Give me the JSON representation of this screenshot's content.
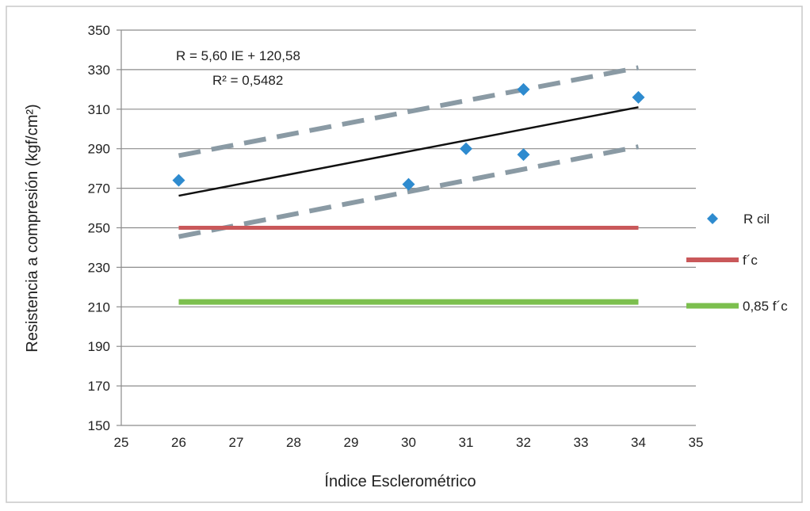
{
  "chart_data": {
    "type": "scatter",
    "xlabel": "Índice Esclerométrico",
    "ylabel": "Resistencia a compresión (kgf/cm²)",
    "xlim": [
      25,
      35
    ],
    "ylim": [
      150,
      350
    ],
    "x_ticks": [
      25,
      26,
      27,
      28,
      29,
      30,
      31,
      32,
      33,
      34,
      35
    ],
    "y_ticks": [
      150,
      170,
      190,
      210,
      230,
      250,
      270,
      290,
      310,
      330,
      350
    ],
    "grid": "horizontal",
    "legend_position": "right",
    "annotations": {
      "equation": "R = 5,60 IE + 120,58",
      "r_squared": "R² = 0,5482"
    },
    "series": [
      {
        "name": "R cil",
        "kind": "scatter",
        "color": "#2e8bcf",
        "points": [
          [
            26,
            274
          ],
          [
            30,
            272
          ],
          [
            31,
            290
          ],
          [
            32,
            320
          ],
          [
            32,
            287
          ],
          [
            34,
            316
          ]
        ]
      },
      {
        "name": "f´c",
        "kind": "line",
        "color": "#c9585a",
        "points": [
          [
            26,
            250
          ],
          [
            34,
            250
          ]
        ]
      },
      {
        "name": "0,85 f´c",
        "kind": "line",
        "color": "#7cbf4e",
        "points": [
          [
            26,
            212.5
          ],
          [
            34,
            212.5
          ]
        ]
      }
    ],
    "trend_line": {
      "color": "#111111",
      "points": [
        [
          26,
          266.2
        ],
        [
          34,
          311.0
        ]
      ]
    },
    "bands": [
      {
        "color": "#8a9aa4",
        "points": [
          [
            26,
            286.5
          ],
          [
            34,
            331
          ]
        ]
      },
      {
        "color": "#8a9aa4",
        "points": [
          [
            26,
            245.5
          ],
          [
            34,
            291
          ]
        ]
      }
    ]
  }
}
